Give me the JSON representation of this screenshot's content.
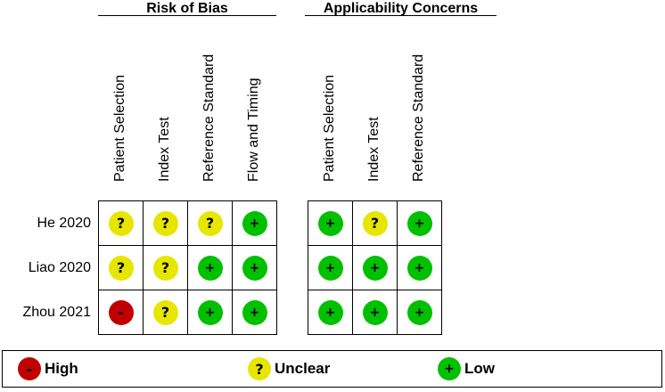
{
  "groups": {
    "risk_of_bias": {
      "title": "Risk of Bias",
      "columns": [
        "Patient Selection",
        "Index Test",
        "Reference Standard",
        "Flow and Timing"
      ]
    },
    "applicability": {
      "title": "Applicability Concerns",
      "columns": [
        "Patient Selection",
        "Index Test",
        "Reference Standard"
      ]
    }
  },
  "studies": [
    {
      "name": "He 2020",
      "risk_of_bias": [
        "unclear",
        "unclear",
        "unclear",
        "low"
      ],
      "applicability": [
        "low",
        "unclear",
        "low"
      ]
    },
    {
      "name": "Liao 2020",
      "risk_of_bias": [
        "unclear",
        "unclear",
        "low",
        "low"
      ],
      "applicability": [
        "low",
        "low",
        "low"
      ]
    },
    {
      "name": "Zhou 2021",
      "risk_of_bias": [
        "high",
        "unclear",
        "low",
        "low"
      ],
      "applicability": [
        "low",
        "low",
        "low"
      ]
    }
  ],
  "ratings": {
    "high": {
      "label": "High",
      "symbol": "-",
      "color": "#c00000"
    },
    "unclear": {
      "label": "Unclear",
      "symbol": "?",
      "color": "#e6e600"
    },
    "low": {
      "label": "Low",
      "symbol": "+",
      "color": "#00c000"
    }
  }
}
